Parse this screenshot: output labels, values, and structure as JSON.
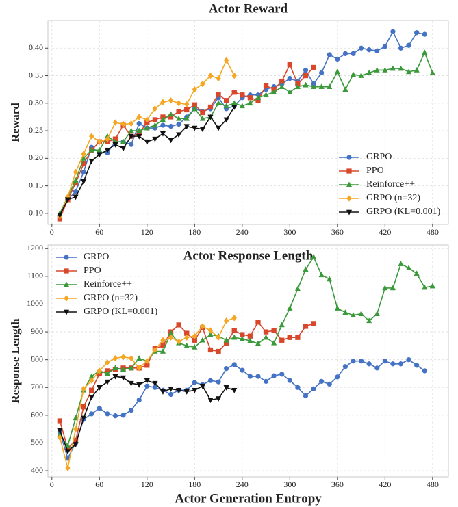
{
  "chart_data": [
    {
      "type": "line",
      "title": "Actor Reward",
      "y_label": "Reward",
      "grid": true,
      "legend": "lower right",
      "xlim": [
        -5,
        500
      ],
      "xticks": [
        0,
        60,
        120,
        180,
        240,
        300,
        360,
        420,
        480
      ],
      "ylim": [
        0.08,
        0.45
      ],
      "yticks": [
        {
          "value": 0.1,
          "label": "0.10"
        },
        0.15,
        {
          "value": 0.2,
          "label": "0.20"
        },
        0.25,
        {
          "value": 0.3,
          "label": "0.30"
        },
        0.35,
        {
          "value": 0.4,
          "label": "0.40"
        }
      ],
      "series": [
        {
          "name": "GRPO",
          "color": "#4472c4",
          "marker": "circle",
          "x": [
            10,
            20,
            30,
            40,
            50,
            60,
            70,
            80,
            90,
            100,
            110,
            120,
            130,
            140,
            150,
            160,
            170,
            180,
            190,
            200,
            210,
            220,
            230,
            240,
            250,
            260,
            270,
            280,
            290,
            300,
            310,
            320,
            330,
            340,
            350,
            360,
            370,
            380,
            390,
            400,
            410,
            420,
            430,
            440,
            450,
            460,
            470
          ],
          "values": [
            0.095,
            0.125,
            0.14,
            0.175,
            0.22,
            0.21,
            0.21,
            0.23,
            0.23,
            0.225,
            0.263,
            0.255,
            0.255,
            0.26,
            0.258,
            0.262,
            0.275,
            0.29,
            0.285,
            0.29,
            0.31,
            0.29,
            0.295,
            0.31,
            0.315,
            0.315,
            0.325,
            0.33,
            0.335,
            0.345,
            0.34,
            0.36,
            0.335,
            0.355,
            0.388,
            0.38,
            0.39,
            0.39,
            0.4,
            0.397,
            0.395,
            0.403,
            0.43,
            0.4,
            0.405,
            0.428,
            0.425
          ]
        },
        {
          "name": "PPO",
          "color": "#d9472b",
          "marker": "square",
          "x": [
            10,
            20,
            30,
            40,
            50,
            60,
            70,
            80,
            90,
            100,
            110,
            120,
            130,
            140,
            150,
            160,
            170,
            180,
            190,
            200,
            210,
            220,
            230,
            240,
            250,
            260,
            270,
            280,
            290,
            300,
            310,
            320,
            330
          ],
          "values": [
            0.09,
            0.125,
            0.155,
            0.19,
            0.215,
            0.23,
            0.23,
            0.235,
            0.26,
            0.24,
            0.245,
            0.265,
            0.27,
            0.275,
            0.275,
            0.285,
            0.288,
            0.297,
            0.283,
            0.293,
            0.316,
            0.305,
            0.32,
            0.315,
            0.31,
            0.305,
            0.332,
            0.325,
            0.34,
            0.37,
            0.335,
            0.35,
            0.365
          ]
        },
        {
          "name": "Reinforce++",
          "color": "#3a9a3a",
          "marker": "triangle-up",
          "x": [
            10,
            20,
            30,
            40,
            50,
            60,
            70,
            80,
            90,
            100,
            110,
            120,
            130,
            140,
            150,
            160,
            170,
            180,
            190,
            200,
            210,
            220,
            230,
            240,
            250,
            260,
            270,
            280,
            290,
            300,
            310,
            320,
            330,
            340,
            350,
            360,
            370,
            380,
            390,
            400,
            410,
            420,
            430,
            440,
            450,
            460,
            470,
            480
          ],
          "values": [
            0.1,
            0.13,
            0.16,
            0.2,
            0.215,
            0.215,
            0.24,
            0.23,
            0.23,
            0.25,
            0.25,
            0.255,
            0.26,
            0.27,
            0.28,
            0.272,
            0.272,
            0.29,
            0.272,
            0.275,
            0.3,
            0.295,
            0.3,
            0.295,
            0.3,
            0.31,
            0.315,
            0.32,
            0.33,
            0.32,
            0.33,
            0.333,
            0.33,
            0.33,
            0.33,
            0.357,
            0.325,
            0.352,
            0.35,
            0.355,
            0.36,
            0.36,
            0.363,
            0.363,
            0.357,
            0.36,
            0.392,
            0.355
          ]
        },
        {
          "name": "GRPO (n=32)",
          "color": "#f5a623",
          "marker": "diamond",
          "x": [
            10,
            20,
            30,
            40,
            50,
            60,
            70,
            80,
            90,
            100,
            110,
            120,
            130,
            140,
            150,
            160,
            170,
            180,
            190,
            200,
            210,
            220,
            230
          ],
          "values": [
            0.095,
            0.13,
            0.175,
            0.208,
            0.24,
            0.23,
            0.235,
            0.265,
            0.262,
            0.263,
            0.275,
            0.27,
            0.29,
            0.302,
            0.305,
            0.3,
            0.298,
            0.325,
            0.335,
            0.35,
            0.345,
            0.378,
            0.35
          ]
        },
        {
          "name": "GRPO (KL=0.001)",
          "color": "#111111",
          "marker": "triangle-down",
          "x": [
            10,
            20,
            30,
            40,
            50,
            60,
            70,
            80,
            90,
            100,
            110,
            120,
            130,
            140,
            150,
            160,
            170,
            180,
            190,
            200,
            210,
            220,
            230
          ],
          "values": [
            0.097,
            0.125,
            0.13,
            0.158,
            0.195,
            0.207,
            0.215,
            0.225,
            0.218,
            0.24,
            0.24,
            0.23,
            0.235,
            0.245,
            0.233,
            0.243,
            0.258,
            0.255,
            0.253,
            0.275,
            0.255,
            0.27,
            0.293
          ]
        }
      ]
    },
    {
      "type": "line",
      "title": "Actor Response Length",
      "y_label": "Response Length",
      "x_label": "Actor Generation Entropy",
      "grid": true,
      "legend": "upper left",
      "xlim": [
        -5,
        500
      ],
      "xticks": [
        0,
        60,
        120,
        180,
        240,
        300,
        360,
        420,
        480
      ],
      "ylim": [
        378,
        1213
      ],
      "yticks": [
        400,
        500,
        600,
        700,
        800,
        900,
        1000,
        1100,
        1200
      ],
      "series": [
        {
          "name": "GRPO",
          "color": "#4472c4",
          "marker": "circle",
          "x": [
            10,
            20,
            30,
            40,
            50,
            60,
            70,
            80,
            90,
            100,
            110,
            120,
            130,
            140,
            150,
            160,
            170,
            180,
            190,
            200,
            210,
            220,
            230,
            240,
            250,
            260,
            270,
            280,
            290,
            300,
            310,
            320,
            330,
            340,
            350,
            360,
            370,
            380,
            390,
            400,
            410,
            420,
            430,
            440,
            450,
            460,
            470
          ],
          "values": [
            540,
            445,
            500,
            585,
            605,
            625,
            605,
            598,
            600,
            618,
            655,
            705,
            700,
            690,
            675,
            690,
            690,
            718,
            710,
            725,
            720,
            768,
            782,
            762,
            740,
            740,
            722,
            742,
            748,
            725,
            700,
            670,
            695,
            722,
            712,
            738,
            775,
            795,
            795,
            785,
            770,
            795,
            785,
            785,
            800,
            780,
            760
          ]
        },
        {
          "name": "PPO",
          "color": "#d9472b",
          "marker": "square",
          "x": [
            10,
            20,
            30,
            40,
            50,
            60,
            70,
            80,
            90,
            100,
            110,
            120,
            130,
            140,
            150,
            160,
            170,
            180,
            190,
            200,
            210,
            220,
            230,
            240,
            250,
            260,
            270,
            280,
            290,
            300,
            310,
            320,
            330
          ],
          "values": [
            580,
            480,
            510,
            630,
            690,
            750,
            760,
            765,
            770,
            770,
            770,
            780,
            840,
            850,
            900,
            925,
            895,
            870,
            915,
            835,
            830,
            860,
            905,
            890,
            885,
            935,
            900,
            905,
            870,
            880,
            880,
            920,
            930
          ]
        },
        {
          "name": "Reinforce++",
          "color": "#3a9a3a",
          "marker": "triangle-up",
          "x": [
            10,
            20,
            30,
            40,
            50,
            60,
            70,
            80,
            90,
            100,
            110,
            120,
            130,
            140,
            150,
            160,
            170,
            180,
            190,
            200,
            210,
            220,
            230,
            240,
            250,
            260,
            270,
            280,
            290,
            300,
            310,
            320,
            330,
            340,
            350,
            360,
            370,
            380,
            390,
            400,
            410,
            420,
            430,
            440,
            450,
            460,
            470,
            480
          ],
          "values": [
            530,
            490,
            590,
            690,
            740,
            760,
            750,
            770,
            765,
            770,
            805,
            795,
            830,
            830,
            895,
            860,
            850,
            845,
            870,
            890,
            885,
            870,
            880,
            875,
            868,
            858,
            880,
            860,
            925,
            985,
            1055,
            1125,
            1170,
            1105,
            1090,
            985,
            970,
            960,
            965,
            940,
            965,
            1058,
            1058,
            1145,
            1130,
            1110,
            1060,
            1065
          ]
        },
        {
          "name": "GRPO (n=32)",
          "color": "#f5a623",
          "marker": "diamond",
          "x": [
            10,
            20,
            30,
            40,
            50,
            60,
            70,
            80,
            90,
            100,
            110,
            120,
            130,
            140,
            150,
            160,
            170,
            180,
            190,
            200,
            210,
            220,
            230
          ],
          "values": [
            520,
            410,
            550,
            695,
            725,
            760,
            790,
            805,
            810,
            805,
            770,
            795,
            835,
            870,
            880,
            865,
            880,
            885,
            920,
            905,
            880,
            940,
            950
          ]
        },
        {
          "name": "GRPO (KL=0.001)",
          "color": "#111111",
          "marker": "triangle-down",
          "x": [
            10,
            20,
            30,
            40,
            50,
            60,
            70,
            80,
            90,
            100,
            110,
            120,
            130,
            140,
            150,
            160,
            170,
            180,
            190,
            200,
            210,
            220,
            230
          ],
          "values": [
            545,
            470,
            495,
            590,
            665,
            700,
            720,
            740,
            735,
            715,
            710,
            725,
            715,
            685,
            695,
            690,
            685,
            690,
            705,
            655,
            660,
            700,
            690
          ]
        }
      ]
    }
  ]
}
